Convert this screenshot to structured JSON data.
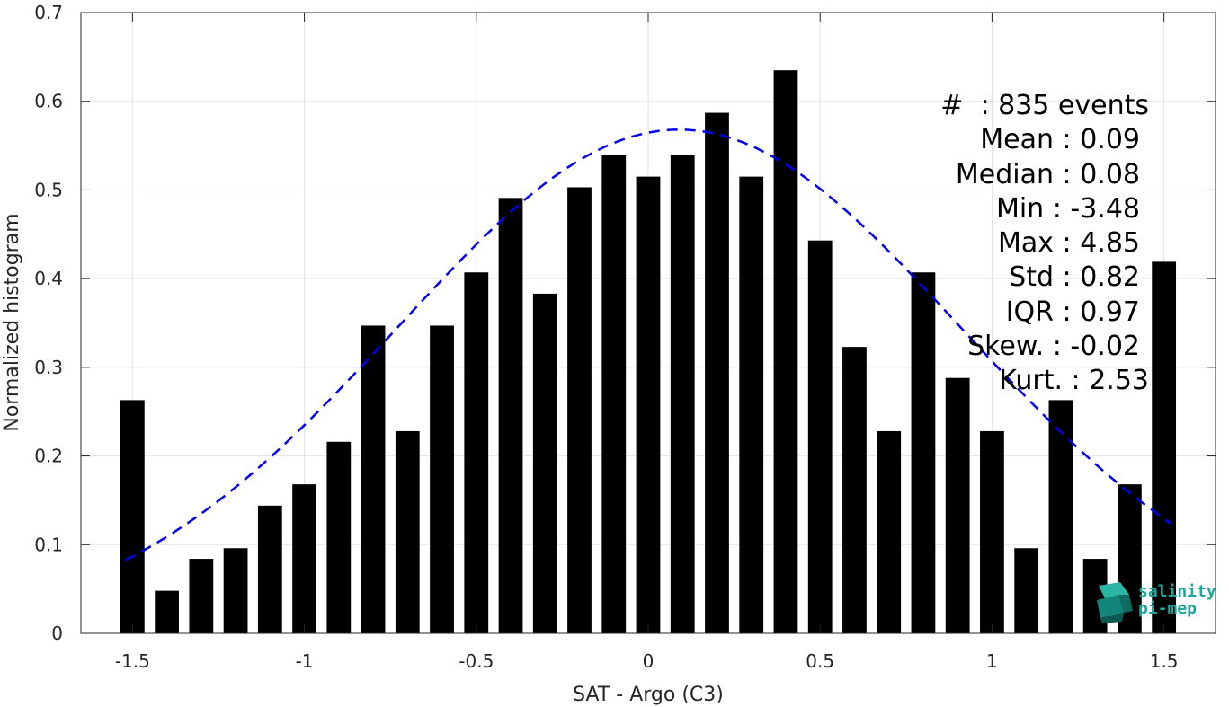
{
  "chart_data": {
    "type": "bar",
    "xlabel": "SAT - Argo (C3)",
    "ylabel": "Normalized histogram",
    "xlim": [
      -1.65,
      1.65
    ],
    "ylim": [
      0,
      0.7
    ],
    "xticks": [
      -1.5,
      -1,
      -0.5,
      0,
      0.5,
      1,
      1.5
    ],
    "xtick_labels": [
      "-1.5",
      "-1",
      "-0.5",
      "0",
      "0.5",
      "1",
      "1.5"
    ],
    "yticks": [
      0,
      0.1,
      0.2,
      0.3,
      0.4,
      0.5,
      0.6,
      0.7
    ],
    "ytick_labels": [
      "0",
      "0.1",
      "0.2",
      "0.3",
      "0.4",
      "0.5",
      "0.6",
      "0.7"
    ],
    "grid": true,
    "bar_width": 0.07,
    "bar_color": "#000000",
    "x": [
      -1.5,
      -1.4,
      -1.3,
      -1.2,
      -1.1,
      -1.0,
      -0.9,
      -0.8,
      -0.7,
      -0.6,
      -0.5,
      -0.4,
      -0.3,
      -0.2,
      -0.1,
      0.0,
      0.1,
      0.2,
      0.3,
      0.4,
      0.5,
      0.6,
      0.7,
      0.8,
      0.9,
      1.0,
      1.1,
      1.2,
      1.3,
      1.4,
      1.5
    ],
    "values": [
      0.263,
      0.048,
      0.084,
      0.096,
      0.144,
      0.168,
      0.216,
      0.347,
      0.228,
      0.347,
      0.407,
      0.491,
      0.383,
      0.503,
      0.539,
      0.515,
      0.539,
      0.587,
      0.515,
      0.635,
      0.443,
      0.323,
      0.228,
      0.407,
      0.288,
      0.228,
      0.096,
      0.263,
      0.084,
      0.168,
      0.419
    ],
    "fit_curve": {
      "style": "dashed",
      "color": "#0000ee",
      "mean": 0.09,
      "std": 0.82,
      "peak": 0.568,
      "x_range": [
        -1.52,
        1.52
      ]
    },
    "stats": [
      {
        "label": "#  : 835 events"
      },
      {
        "label": "Mean : 0.09"
      },
      {
        "label": "Median : 0.08"
      },
      {
        "label": "Min : -3.48"
      },
      {
        "label": "Max : 4.85"
      },
      {
        "label": "Std : 0.82"
      },
      {
        "label": "IQR : 0.97"
      },
      {
        "label": "Skew. : -0.02"
      },
      {
        "label": "Kurt. : 2.53"
      }
    ]
  },
  "logo": {
    "line1": "salinity",
    "line2": "pi-mep",
    "color": "#1aa79a"
  }
}
